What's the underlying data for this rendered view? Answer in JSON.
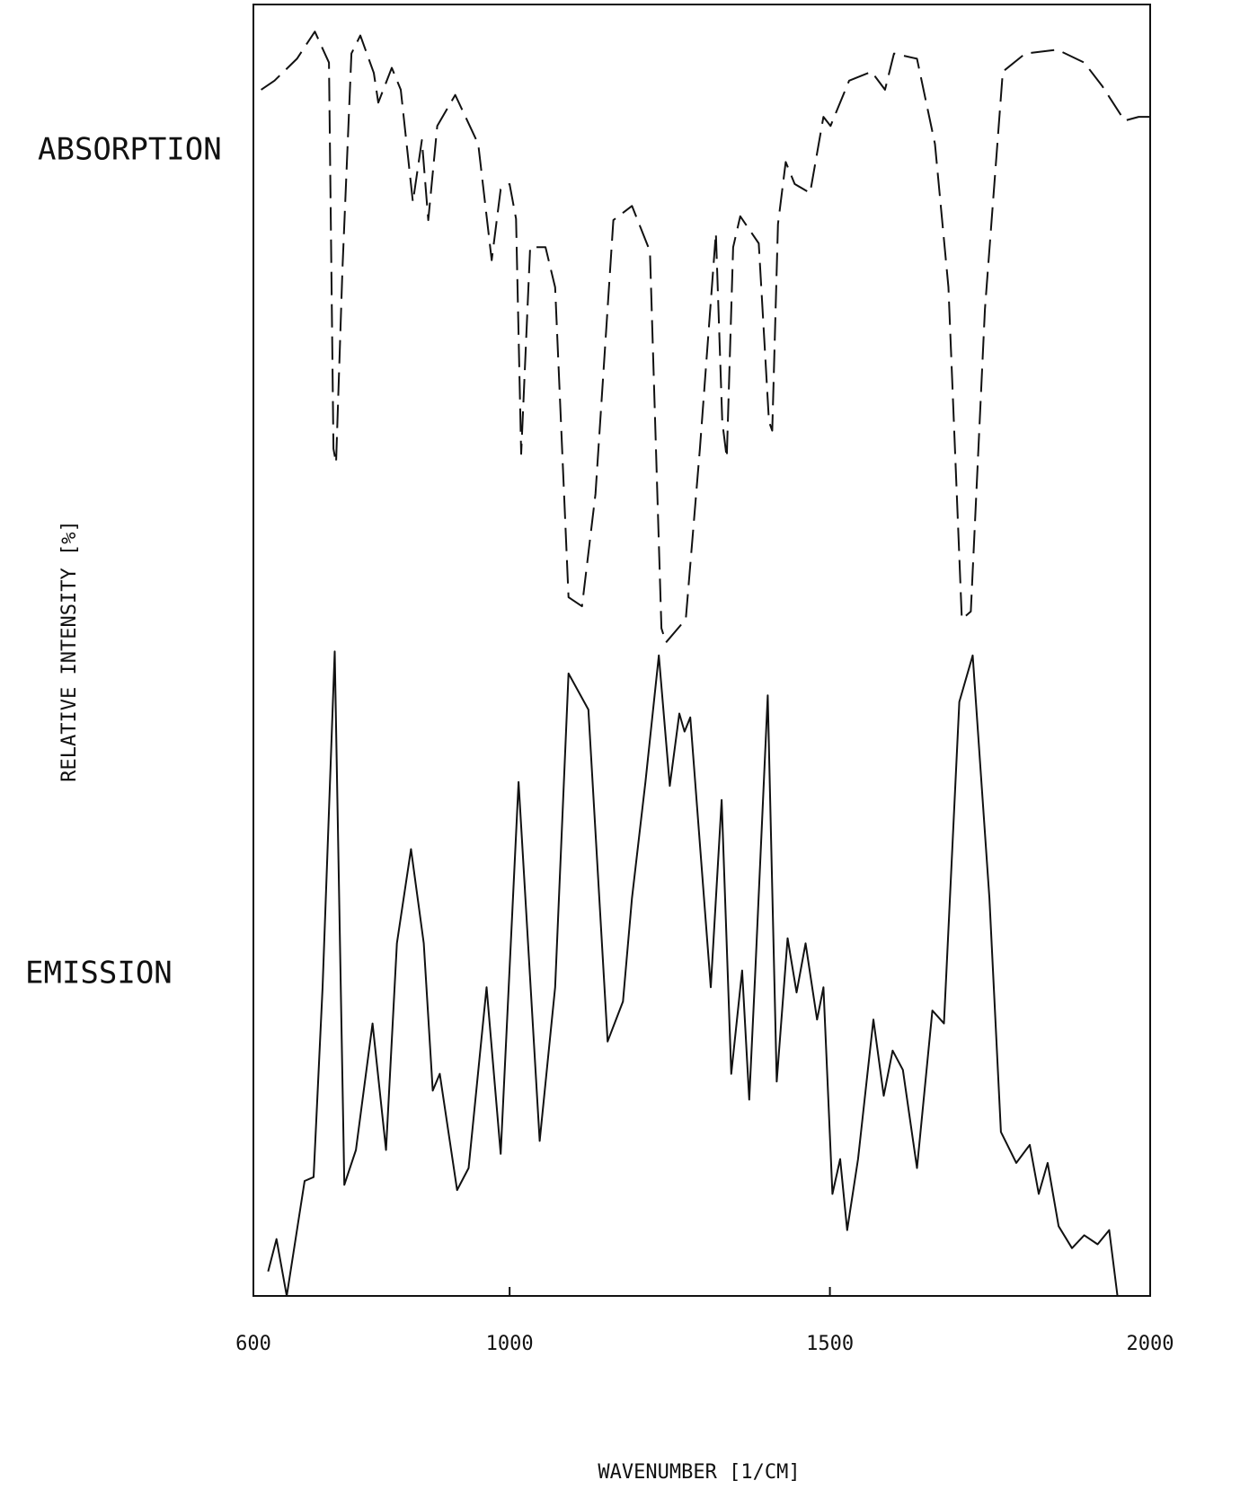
{
  "chart_data": {
    "type": "line",
    "ylabel": "RELATIVE INTENSITY [%]",
    "xlabel": "WAVENUMBER [1/CM]",
    "annotations": [
      "ABSORPTION",
      "EMISSION"
    ],
    "xlim": [
      600,
      2000
    ],
    "xticks": [
      600,
      1000,
      1500,
      2000
    ],
    "ylim": [
      0,
      100
    ],
    "series": [
      {
        "name": "ABSORPTION",
        "color": "#111111",
        "line_style": "dashed",
        "x": [
          612,
          633,
          668,
          696,
          718,
          725,
          729,
          739,
          753,
          767,
          788,
          795,
          816,
          830,
          849,
          863,
          873,
          887,
          915,
          951,
          972,
          986,
          1000,
          1010,
          1018,
          1032,
          1056,
          1071,
          1092,
          1113,
          1134,
          1162,
          1191,
          1219,
          1237,
          1244,
          1275,
          1297,
          1322,
          1332,
          1339,
          1349,
          1360,
          1389,
          1405,
          1410,
          1419,
          1431,
          1445,
          1469,
          1490,
          1501,
          1530,
          1565,
          1586,
          1600,
          1636,
          1664,
          1685,
          1706,
          1720,
          1742,
          1770,
          1805,
          1855,
          1897,
          1925,
          1960,
          1982,
          1999
        ],
        "values": [
          93.4,
          94.1,
          95.8,
          97.9,
          95.5,
          65.6,
          64.5,
          79.5,
          96.2,
          97.6,
          94.7,
          92.4,
          95.1,
          93.4,
          84.7,
          89.5,
          83.3,
          90.6,
          93.0,
          89.2,
          80.2,
          85.7,
          86.1,
          83.4,
          65.2,
          81.2,
          81.2,
          78.1,
          54.1,
          53.4,
          62.1,
          83.3,
          84.4,
          80.9,
          51.7,
          50.6,
          52.4,
          65.6,
          82.3,
          67.7,
          64.9,
          81.2,
          83.6,
          81.5,
          67.7,
          67.0,
          83.0,
          87.8,
          86.1,
          85.4,
          91.3,
          90.6,
          94.1,
          94.8,
          93.4,
          96.2,
          95.8,
          89.2,
          78.1,
          52.4,
          53.0,
          76.4,
          94.8,
          96.2,
          96.5,
          95.5,
          93.7,
          91.0,
          91.3,
          91.3
        ]
      },
      {
        "name": "EMISSION",
        "color": "#111111",
        "line_style": "solid",
        "x": [
          623,
          636,
          652,
          680,
          694,
          708,
          727,
          742,
          760,
          786,
          807,
          824,
          846,
          866,
          880,
          891,
          918,
          936,
          964,
          986,
          1014,
          1047,
          1071,
          1092,
          1123,
          1153,
          1177,
          1191,
          1212,
          1233,
          1250,
          1265,
          1273,
          1282,
          1314,
          1331,
          1346,
          1363,
          1374,
          1383,
          1403,
          1417,
          1434,
          1448,
          1462,
          1480,
          1490,
          1504,
          1516,
          1527,
          1544,
          1568,
          1584,
          1598,
          1614,
          1636,
          1660,
          1678,
          1702,
          1723,
          1749,
          1767,
          1791,
          1812,
          1826,
          1840,
          1857,
          1878,
          1897,
          1918,
          1936,
          1949
        ],
        "values": [
          1.9,
          4.4,
          0,
          8.9,
          9.2,
          23.9,
          49.9,
          8.6,
          11.3,
          21.1,
          11.3,
          27.3,
          34.6,
          27.3,
          15.9,
          17.2,
          8.2,
          9.9,
          23.9,
          11.0,
          39.8,
          12.0,
          23.9,
          48.2,
          45.4,
          19.7,
          22.8,
          30.8,
          39.8,
          49.6,
          39.5,
          45.1,
          43.7,
          44.8,
          23.9,
          38.4,
          17.2,
          25.2,
          15.2,
          24.6,
          46.5,
          16.6,
          27.7,
          23.5,
          27.3,
          21.4,
          23.9,
          7.9,
          10.6,
          5.1,
          10.6,
          21.4,
          15.5,
          19.0,
          17.5,
          9.9,
          22.1,
          21.1,
          46.0,
          49.6,
          30.8,
          12.7,
          10.3,
          11.7,
          7.9,
          10.3,
          5.4,
          3.7,
          4.7,
          4.0,
          5.1,
          0
        ]
      }
    ]
  }
}
